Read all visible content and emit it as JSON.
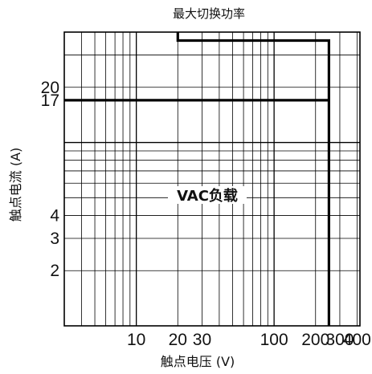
{
  "chart_data": {
    "type": "line",
    "title": "最大切换功率",
    "xlabel": "触点电压 (V)",
    "ylabel": "触点电流 (A)",
    "x_scale": "log",
    "y_scale": "log",
    "xlim": [
      3,
      420
    ],
    "ylim": [
      1,
      40
    ],
    "grid": true,
    "x_ticks": [
      10,
      20,
      30,
      100,
      200,
      300,
      400
    ],
    "x_tick_labels": [
      "10",
      "20",
      "30",
      "100",
      "200",
      "300",
      "400"
    ],
    "y_ticks": [
      2,
      3,
      4,
      17,
      20
    ],
    "y_tick_labels": [
      "2",
      "3",
      "4",
      "17",
      "20"
    ],
    "annotation": "VAC负载",
    "series": [
      {
        "x": [
          3,
          250,
          250
        ],
        "y": [
          17,
          17,
          1
        ]
      },
      {
        "x": [
          20,
          20,
          250,
          250
        ],
        "y": [
          40,
          36,
          36,
          17
        ]
      }
    ]
  }
}
